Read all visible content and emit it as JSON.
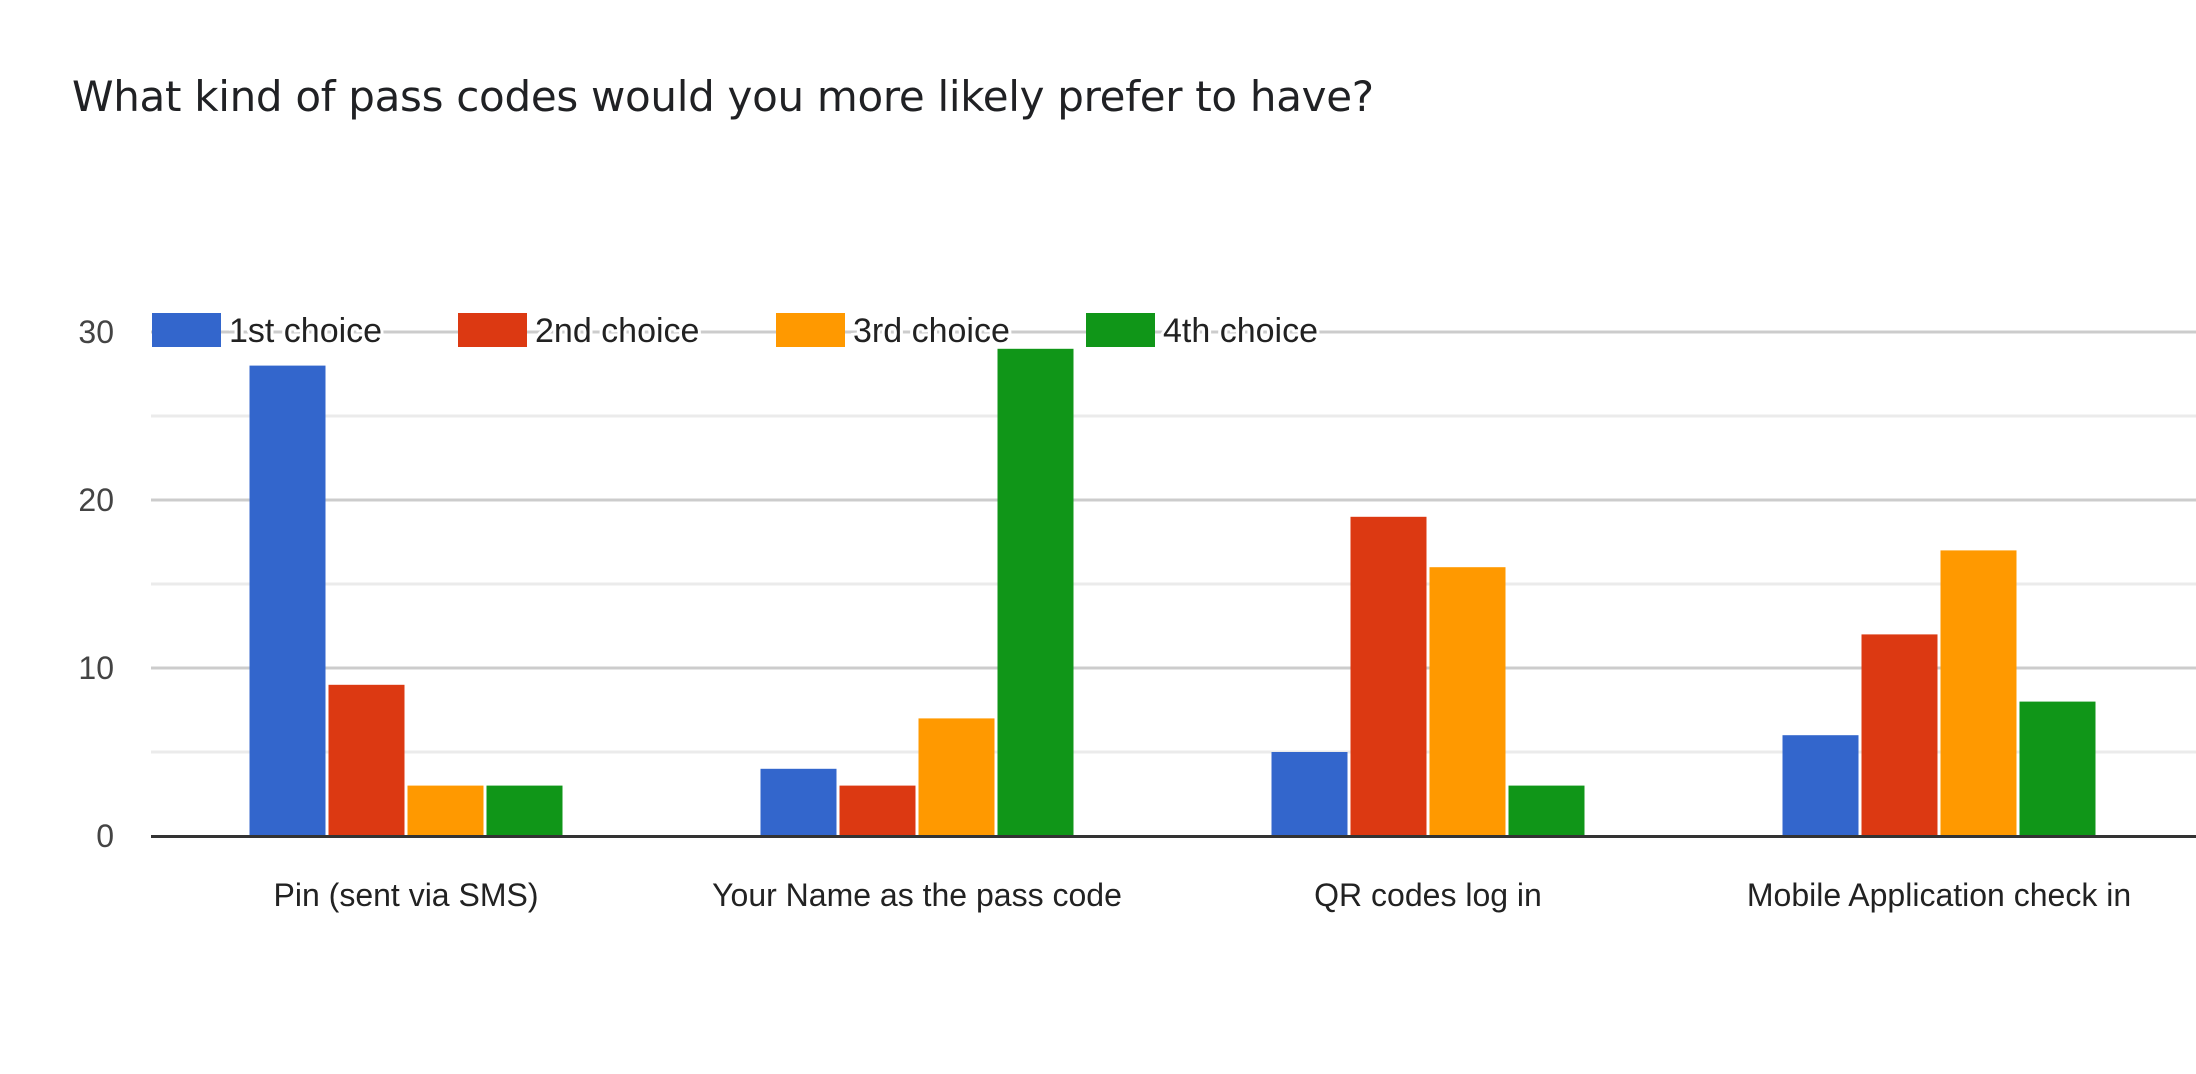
{
  "title": "What kind of pass codes would you more likely prefer to have?",
  "colors": {
    "series": [
      "#3366cc",
      "#dc3912",
      "#ff9900",
      "#109618"
    ],
    "major_grid": "#cccccc",
    "minor_grid": "#ebebeb",
    "baseline": "#333333"
  },
  "legend": {
    "position": "top",
    "items": [
      "1st choice",
      "2nd choice",
      "3rd choice",
      "4th choice"
    ]
  },
  "y_axis": {
    "ticks": [
      "0",
      "10",
      "20",
      "30"
    ]
  },
  "x_axis": {
    "labels": [
      "Pin (sent via SMS)",
      "Your Name as the pass code",
      "QR codes log in",
      "Mobile Application check in"
    ]
  },
  "chart_data": {
    "type": "bar",
    "title": "What kind of pass codes would you more likely prefer to have?",
    "xlabel": "",
    "ylabel": "",
    "categories": [
      "Pin (sent via SMS)",
      "Your Name as the pass code",
      "QR codes log in",
      "Mobile Application check in"
    ],
    "series": [
      {
        "name": "1st choice",
        "color": "#3366cc",
        "values": [
          28,
          4,
          5,
          6
        ]
      },
      {
        "name": "2nd choice",
        "color": "#dc3912",
        "values": [
          9,
          3,
          19,
          12
        ]
      },
      {
        "name": "3rd choice",
        "color": "#ff9900",
        "values": [
          3,
          7,
          16,
          17
        ]
      },
      {
        "name": "4th choice",
        "color": "#109618",
        "values": [
          3,
          29,
          3,
          8
        ]
      }
    ],
    "ylim": [
      0,
      30
    ],
    "yticks": [
      0,
      10,
      20,
      30
    ],
    "minor_gridlines": [
      5,
      15,
      25
    ],
    "grid": true,
    "legend_position": "top"
  }
}
